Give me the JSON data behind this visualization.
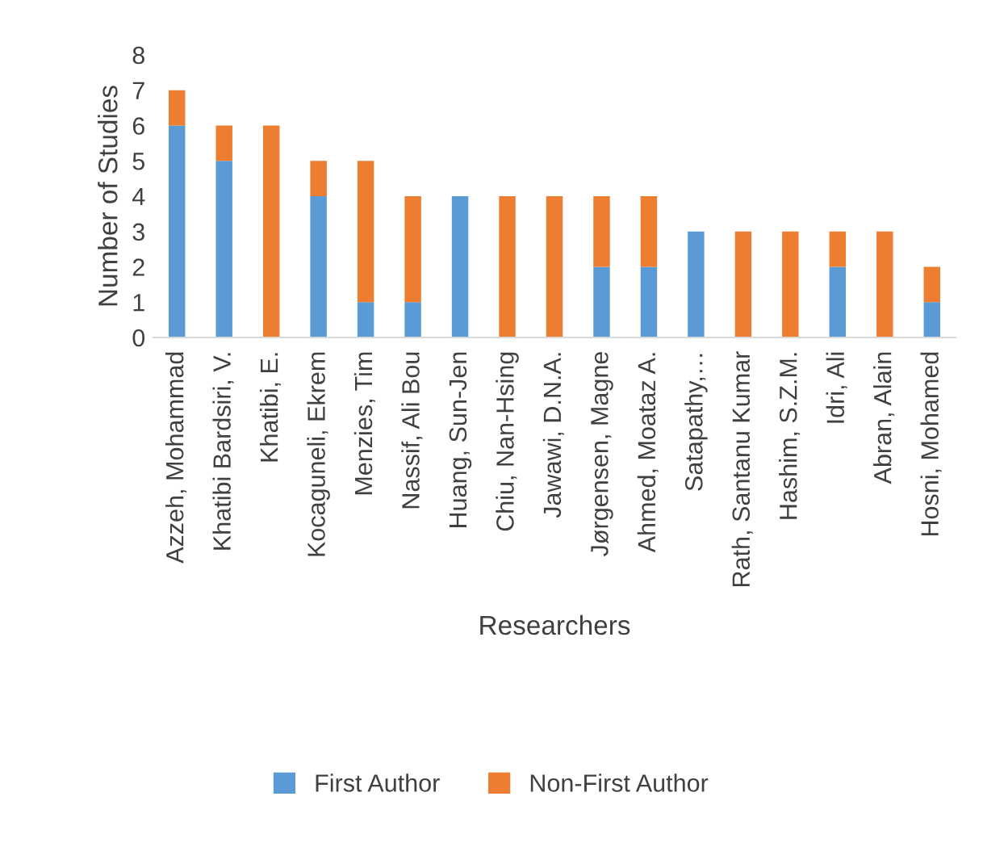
{
  "chart_data": {
    "type": "bar",
    "stacked": true,
    "xlabel": "Researchers",
    "ylabel": "Number of Studies",
    "categories": [
      "Azzeh, Mohammad",
      "Khatibi Bardsiri, V.",
      "Khatibi, E.",
      "Kocaguneli, Ekrem",
      "Menzies, Tim",
      "Nassif, Ali Bou",
      "Huang, Sun-Jen",
      "Chiu, Nan-Hsing",
      "Jawawi, D.N.A.",
      "Jørgensen, Magne",
      "Ahmed, Moataz A.",
      "Satapathy,…",
      "Rath, Santanu Kumar",
      "Hashim, S.Z.M.",
      "Idri, Ali",
      "Abran, Alain",
      "Hosni, Mohamed"
    ],
    "series": [
      {
        "name": "First Author",
        "color": "#5b9bd5",
        "values": [
          6,
          5,
          0,
          4,
          1,
          1,
          4,
          0,
          0,
          2,
          2,
          3,
          0,
          0,
          2,
          0,
          1
        ]
      },
      {
        "name": "Non-First Author",
        "color": "#ed7d31",
        "values": [
          1,
          1,
          6,
          1,
          4,
          3,
          0,
          4,
          4,
          2,
          2,
          0,
          3,
          3,
          1,
          3,
          1
        ]
      }
    ],
    "ylim": [
      0,
      8
    ],
    "yticks": [
      0,
      1,
      2,
      3,
      4,
      5,
      6,
      7,
      8
    ],
    "grid": false,
    "legend": "bottom"
  }
}
